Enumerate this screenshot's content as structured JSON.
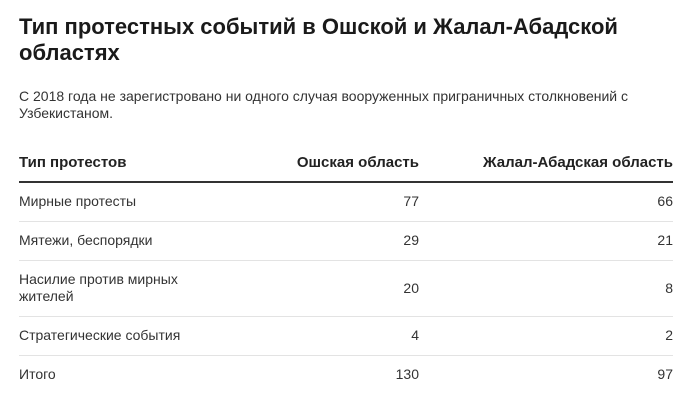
{
  "header": {
    "title": "Тип протестных событий в Ошской и Жалал-Абадской областях",
    "subtitle": "С 2018 года не зарегистровано ни одного случая вооруженных приграничных столкновений с Узбекистаном."
  },
  "chart_data": {
    "type": "table",
    "columns": [
      "Тип протестов",
      "Ошская область",
      "Жалал-Абадская область"
    ],
    "rows": [
      {
        "label": "Мирные протесты",
        "osh": "77",
        "jalal_abad": "66"
      },
      {
        "label": "Мятежи, беспорядки",
        "osh": "29",
        "jalal_abad": "21"
      },
      {
        "label": "Насилие против мирных жителей",
        "osh": "20",
        "jalal_abad": "8"
      },
      {
        "label": "Стратегические события",
        "osh": "4",
        "jalal_abad": "2"
      },
      {
        "label": "Итого",
        "osh": "130",
        "jalal_abad": "97"
      }
    ]
  }
}
